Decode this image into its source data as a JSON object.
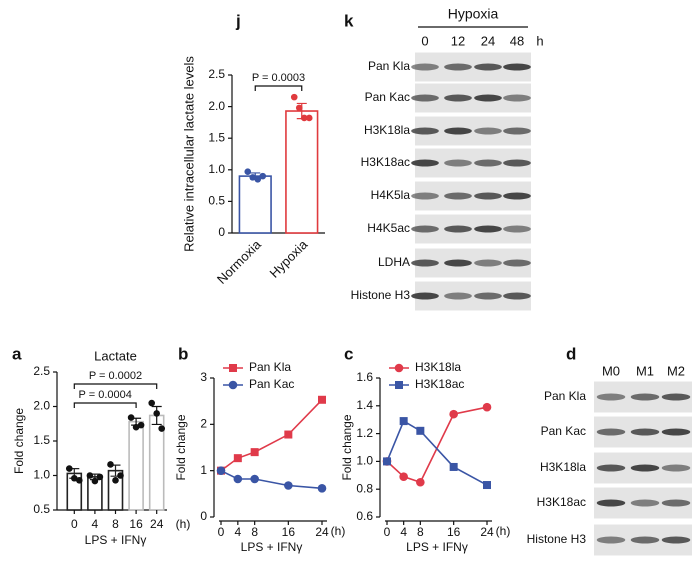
{
  "chart_data": [
    {
      "type": "bar",
      "panel": "j",
      "y_label": "Relative intracellular lactate levels",
      "categories": [
        "Normoxia",
        "Hypoxia"
      ],
      "values": [
        0.9,
        1.93
      ],
      "errors": [
        0.05,
        0.12
      ],
      "points": [
        [
          0.97,
          0.88,
          0.85,
          0.9
        ],
        [
          2.15,
          1.98,
          1.82,
          1.82
        ]
      ],
      "colors": [
        "#3a55a5",
        "#e03a3e"
      ],
      "point_colors": [
        "#3a55a5",
        "#e03a3e"
      ],
      "ylim": [
        0,
        2.5
      ],
      "yticks": [
        0,
        0.5,
        {
          "value": 1,
          "label": "1.0"
        },
        1.5,
        {
          "value": 2,
          "label": "2.0"
        },
        2.5
      ],
      "annotations": [
        "P = 0.0003"
      ]
    },
    {
      "type": "bar",
      "panel": "a",
      "title": "Lactate",
      "y_label": "Fold change",
      "x_label": "LPS + IFNγ",
      "x_unit": "(h)",
      "categories": [
        "0",
        "4",
        "8",
        "16",
        "24"
      ],
      "values": [
        1.03,
        0.98,
        1.07,
        1.78,
        1.87
      ],
      "errors": [
        0.07,
        0.04,
        0.08,
        0.05,
        0.13
      ],
      "points": [
        [
          1.1,
          0.96,
          0.93
        ],
        [
          1.0,
          0.92,
          0.98
        ],
        [
          1.16,
          0.93,
          1.0
        ],
        [
          1.84,
          1.7,
          1.73
        ],
        [
          2.05,
          1.9,
          1.68
        ]
      ],
      "colors": [
        "#222222",
        "#222222",
        "#222222",
        "#bbbbbb",
        "#bbbbbb"
      ],
      "point_colors": [
        "#111111",
        "#111111",
        "#111111",
        "#111111",
        "#111111"
      ],
      "ylim": [
        0.5,
        2.5
      ],
      "yticks": [
        0.5,
        {
          "value": 1,
          "label": "1.0"
        },
        1.5,
        {
          "value": 2,
          "label": "2.0"
        },
        2.5
      ],
      "annotations": [
        "P = 0.0002",
        "P = 0.0004"
      ]
    },
    {
      "type": "line",
      "panel": "b",
      "y_label": "Fold change",
      "x_label": "LPS + IFNγ",
      "x_unit": "(h)",
      "x": [
        0,
        4,
        8,
        16,
        24
      ],
      "xlim": [
        0,
        24
      ],
      "xticks": [
        0,
        4,
        8,
        16,
        24
      ],
      "ylim": [
        0,
        3
      ],
      "yticks": [
        0,
        1,
        2,
        3
      ],
      "legend": "upper-left",
      "series": [
        {
          "name": "Pan Kla",
          "color": "#e03a4a",
          "marker": "square",
          "values": [
            1,
            1.27,
            1.4,
            1.78,
            2.53
          ]
        },
        {
          "name": "Pan Kac",
          "color": "#3a55a5",
          "marker": "circle",
          "values": [
            1,
            0.82,
            0.82,
            0.68,
            0.62
          ]
        }
      ]
    },
    {
      "type": "line",
      "panel": "c",
      "y_label": "Fold change",
      "x_label": "LPS + IFNγ",
      "x_unit": "(h)",
      "x": [
        0,
        4,
        8,
        16,
        24
      ],
      "xlim": [
        0,
        24
      ],
      "xticks": [
        0,
        4,
        8,
        16,
        24
      ],
      "ylim": [
        0.6,
        1.6
      ],
      "yticks": [
        0.6,
        0.8,
        {
          "value": 1,
          "label": "1.0"
        },
        1.2,
        1.4,
        1.6
      ],
      "legend": "upper-left",
      "series": [
        {
          "name": "H3K18la",
          "color": "#e03a4a",
          "marker": "circle",
          "values": [
            1,
            0.89,
            0.85,
            1.34,
            1.39
          ]
        },
        {
          "name": "H3K18ac",
          "color": "#3a55a5",
          "marker": "square",
          "values": [
            1,
            1.29,
            1.22,
            0.96,
            0.83
          ]
        }
      ]
    }
  ],
  "blots": [
    {
      "panel": "k",
      "header": "Hypoxia",
      "columns": [
        "0",
        "12",
        "24",
        "48"
      ],
      "unit": "h",
      "rows": [
        "Pan Kla",
        "Pan Kac",
        "H3K18la",
        "H3K18ac",
        "H4K5la",
        "H4K5ac",
        "LDHA",
        "Histone H3"
      ]
    },
    {
      "panel": "d",
      "columns": [
        "M0",
        "M1",
        "M2"
      ],
      "rows": [
        "Pan Kla",
        "Pan Kac",
        "H3K18la",
        "H3K18ac",
        "Histone H3"
      ]
    }
  ]
}
